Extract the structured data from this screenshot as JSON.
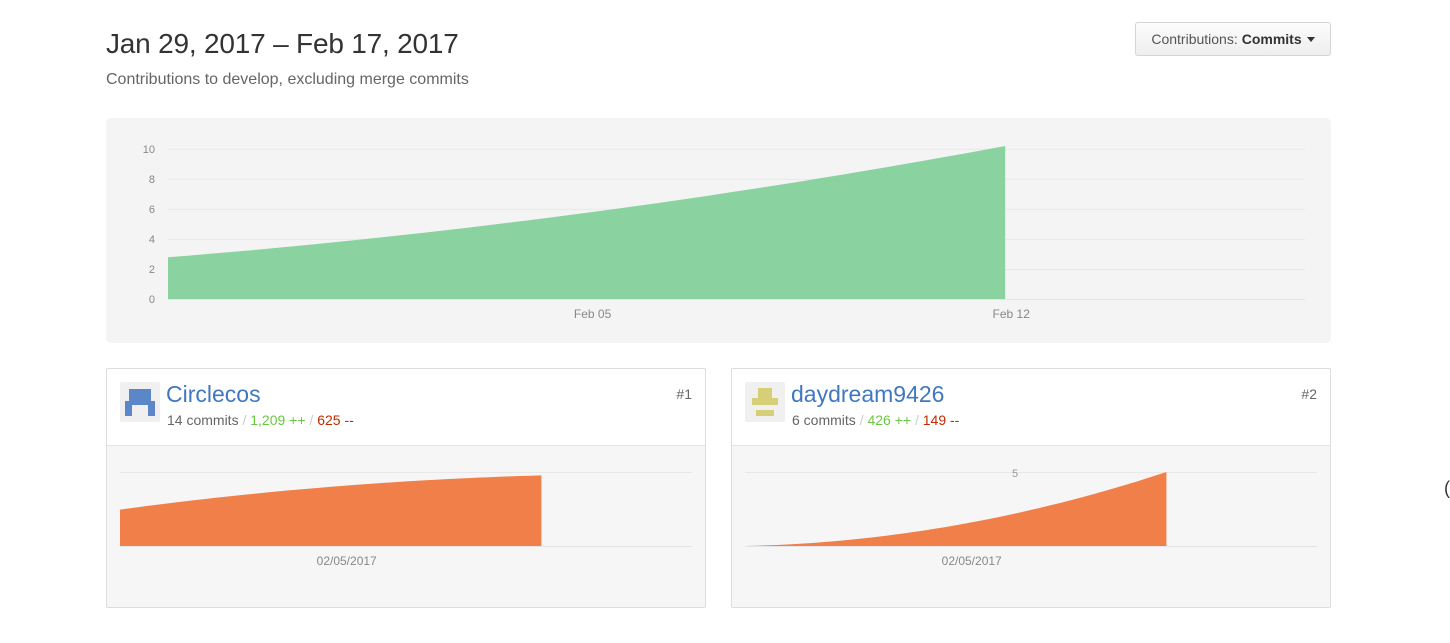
{
  "header": {
    "title": "Jan 29, 2017 – Feb 17, 2017",
    "subtitle": "Contributions to develop, excluding merge commits"
  },
  "contrib_select": {
    "label": "Contributions:",
    "value": "Commits",
    "icon": "caret-down-icon"
  },
  "colors": {
    "main_area": "#8ad3a0",
    "contributor_area": "#f17f49",
    "link": "#4078c0",
    "additions": "#6cc644",
    "deletions": "#bd2c00"
  },
  "chart_data": [
    {
      "type": "area",
      "x": [
        "2017-01-29",
        "2017-02-05",
        "2017-02-12"
      ],
      "y": [
        3,
        6.2,
        11
      ],
      "xticks": [
        "Feb 05",
        "Feb 12"
      ],
      "yticks": [
        "0",
        "2",
        "4",
        "6",
        "8",
        "10"
      ],
      "ylim": [
        0,
        11
      ],
      "grid": true
    },
    {
      "type": "area",
      "x": [
        "01/29/2017",
        "02/05/2017",
        "02/12/2017"
      ],
      "y": [
        3.2,
        5.2,
        6.2
      ],
      "xticks": [
        "02/05/2017"
      ],
      "ylim": [
        0,
        6.5
      ],
      "grid": true
    },
    {
      "type": "area",
      "x": [
        "01/29/2017",
        "02/05/2017",
        "02/12/2017"
      ],
      "y": [
        0,
        1.4,
        5
      ],
      "xticks": [
        "02/05/2017"
      ],
      "yticks": [
        "5"
      ],
      "ylim": [
        0,
        5
      ],
      "grid": true
    }
  ],
  "contributors": [
    {
      "username": "Circlecos",
      "commits": "14 commits",
      "additions": "1,209 ++",
      "deletions": "625 --",
      "rank": "#1",
      "avatar_color": "#5b87c9"
    },
    {
      "username": "daydream9426",
      "commits": "6 commits",
      "additions": "426 ++",
      "deletions": "149 --",
      "rank": "#2",
      "avatar_color": "#d6cf77"
    }
  ],
  "edge_glyph": "("
}
